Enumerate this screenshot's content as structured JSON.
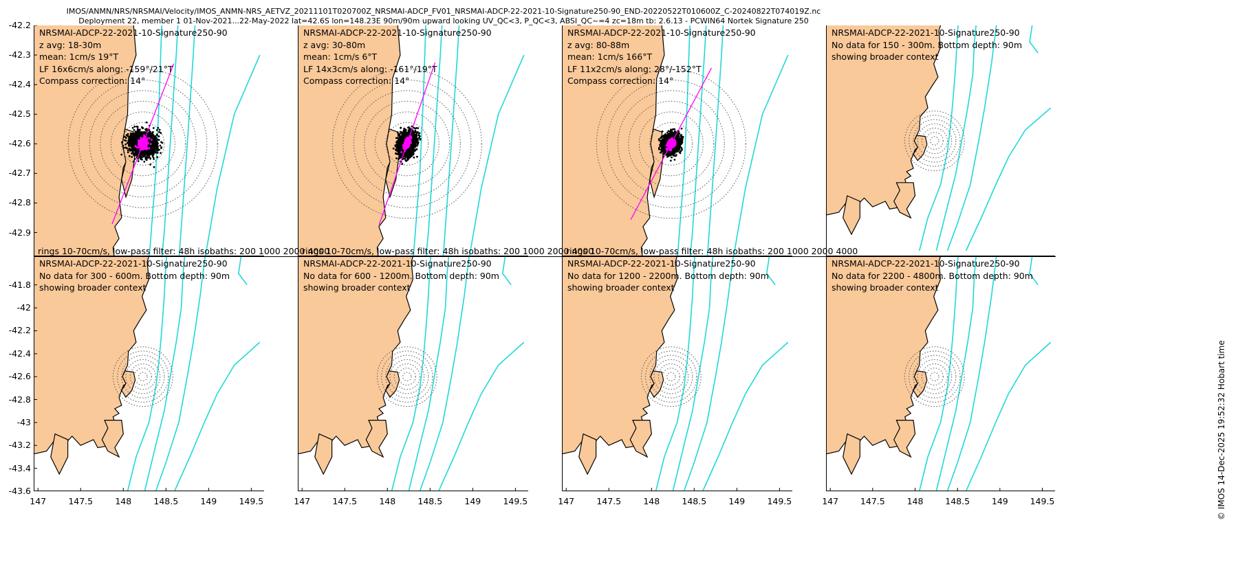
{
  "header": {
    "line1": "IMOS/ANMN/NRS/NRSMAI/Velocity/IMOS_ANMN-NRS_AETVZ_20211101T020700Z_NRSMAI-ADCP_FV01_NRSMAI-ADCP-22-2021-10-Signature250-90_END-20220522T010600Z_C-20240822T074019Z.nc",
    "line2": "Deployment 22, member 1 01-Nov-2021...22-May-2022 lat=42.6S lon=148.23E 90m/90m upward looking UV_QC<3, P_QC<3, ABSI_QC~=4 zc=18m tb: 2.6.13 - PCWIN64 Nortek Signature 250"
  },
  "credit": "© IMOS 14-Dec-2025 19:52:32 Hobart time",
  "colors": {
    "land": "#f9c99a",
    "isobath": "#1fd8d8",
    "scatter": "#000000",
    "lowpass": "#ff00ff",
    "ring": "#555555",
    "axis": "#000000"
  },
  "chart_data": [
    {
      "type": "scatter",
      "panel": 1,
      "lines": [
        "NRSMAI-ADCP-22-2021-10-Signature250-90",
        "z avg: 18-30m",
        "mean: 1cm/s 19°T",
        "LF 16x6cm/s along: -159°/21°T",
        "Compass correction: 14°"
      ],
      "footer": "rings 10-70cm/s, low-pass filter: 48h isobaths: 200 1000 2000 4000",
      "center": [
        148.23,
        -42.6
      ],
      "spread": [
        0.12,
        0.055
      ],
      "along_deg": 21,
      "has_scatter": true,
      "xlim": [
        146.95,
        149.65
      ],
      "ylim": [
        -42.98,
        -42.2
      ],
      "yticks": [
        -42.2,
        -42.3,
        -42.4,
        -42.5,
        -42.6,
        -42.7,
        -42.8,
        -42.9
      ],
      "xticks": []
    },
    {
      "type": "scatter",
      "panel": 2,
      "lines": [
        "NRSMAI-ADCP-22-2021-10-Signature250-90",
        "z avg: 30-80m",
        "mean: 1cm/s 6°T",
        "LF 14x3cm/s along: -161°/19°T",
        "Compass correction: 14°"
      ],
      "footer": "rings 10-70cm/s, low-pass filter: 48h isobaths: 200 1000 2000 4000",
      "center": [
        148.23,
        -42.6
      ],
      "spread": [
        0.12,
        0.035
      ],
      "along_deg": 19,
      "has_scatter": true,
      "xlim": [
        146.95,
        149.65
      ],
      "ylim": [
        -42.98,
        -42.2
      ],
      "yticks": [],
      "xticks": []
    },
    {
      "type": "scatter",
      "panel": 3,
      "lines": [
        "NRSMAI-ADCP-22-2021-10-Signature250-90",
        "z avg: 80-88m",
        "mean: 1cm/s 166°T",
        "LF 11x2cm/s along: 28°/-152°T",
        "Compass correction: 14°"
      ],
      "footer": "rings 10-70cm/s, low-pass filter: 48h isobaths: 200 1000 2000 4000",
      "center": [
        148.23,
        -42.6
      ],
      "spread": [
        0.1,
        0.035
      ],
      "along_deg": 28,
      "has_scatter": true,
      "xlim": [
        146.95,
        149.65
      ],
      "ylim": [
        -42.98,
        -42.2
      ],
      "yticks": [],
      "xticks": []
    },
    {
      "type": "scatter",
      "panel": 4,
      "lines": [
        "NRSMAI-ADCP-22-2021-10-Signature250-90",
        "No data for 150 - 300m. Bottom depth: 90m",
        "showing broader context"
      ],
      "footer": "",
      "center": [
        148.23,
        -42.6
      ],
      "has_scatter": false,
      "xlim": [
        146.95,
        149.65
      ],
      "ylim": [
        -43.65,
        -41.55
      ],
      "yticks": [],
      "xticks": []
    },
    {
      "type": "scatter",
      "panel": 5,
      "lines": [
        "NRSMAI-ADCP-22-2021-10-Signature250-90",
        "No data for 300 - 600m. Bottom depth: 90m",
        "showing broader context"
      ],
      "footer": "",
      "center": [
        148.23,
        -42.6
      ],
      "has_scatter": false,
      "xlim": [
        146.95,
        149.65
      ],
      "ylim": [
        -43.6,
        -41.55
      ],
      "yticks": [
        -41.8,
        -42,
        -42.2,
        -42.4,
        -42.6,
        -42.8,
        -43,
        -43.2,
        -43.4,
        -43.6
      ],
      "xticks": [
        147,
        147.5,
        148,
        148.5,
        149,
        149.5
      ]
    },
    {
      "type": "scatter",
      "panel": 6,
      "lines": [
        "NRSMAI-ADCP-22-2021-10-Signature250-90",
        "No data for 600 - 1200m. Bottom depth: 90m",
        "showing broader context"
      ],
      "footer": "",
      "center": [
        148.23,
        -42.6
      ],
      "has_scatter": false,
      "xlim": [
        146.95,
        149.65
      ],
      "ylim": [
        -43.6,
        -41.55
      ],
      "yticks": [],
      "xticks": [
        147,
        147.5,
        148,
        148.5,
        149,
        149.5
      ]
    },
    {
      "type": "scatter",
      "panel": 7,
      "lines": [
        "NRSMAI-ADCP-22-2021-10-Signature250-90",
        "No data for 1200 - 2200m. Bottom depth: 90m",
        "showing broader context"
      ],
      "footer": "",
      "center": [
        148.23,
        -42.6
      ],
      "has_scatter": false,
      "xlim": [
        146.95,
        149.65
      ],
      "ylim": [
        -43.6,
        -41.55
      ],
      "yticks": [],
      "xticks": [
        147,
        147.5,
        148,
        148.5,
        149,
        149.5
      ]
    },
    {
      "type": "scatter",
      "panel": 8,
      "lines": [
        "NRSMAI-ADCP-22-2021-10-Signature250-90",
        "No data for 2200 - 4800m. Bottom depth: 90m",
        "showing broader context"
      ],
      "footer": "",
      "center": [
        148.23,
        -42.6
      ],
      "has_scatter": false,
      "xlim": [
        146.95,
        149.65
      ],
      "ylim": [
        -43.6,
        -41.55
      ],
      "yticks": [],
      "xticks": [
        147,
        147.5,
        148,
        148.5,
        149,
        149.5
      ]
    }
  ]
}
